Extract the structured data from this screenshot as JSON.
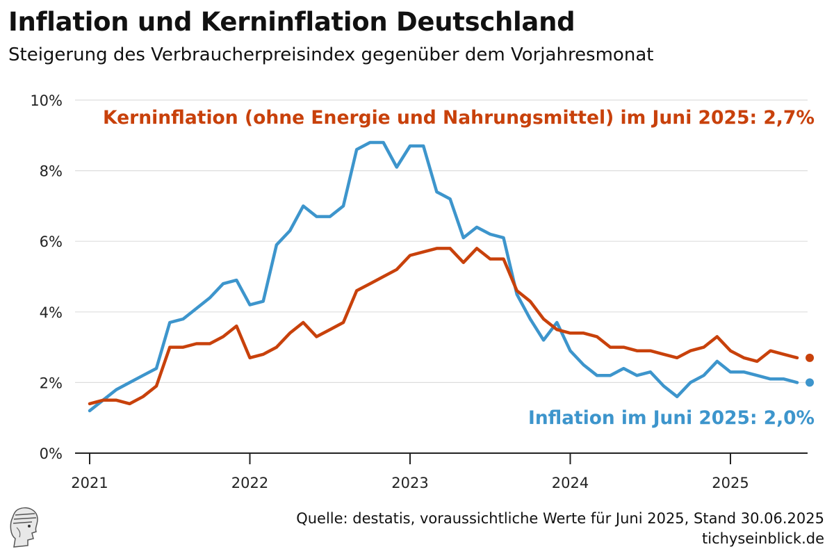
{
  "header": {
    "title": "Inflation und Kerninflation Deutschland",
    "subtitle": "Steigerung des Verbraucherpreisindex gegenüber dem Vorjahresmonat"
  },
  "footer": {
    "source": "Quelle: destatis, voraussichtliche Werte für Juni 2025, Stand 30.06.2025",
    "site": "tichyseinblick.de"
  },
  "colors": {
    "inflation": "#3d95cc",
    "core": "#c8410b",
    "grid": "#dddddd",
    "axis": "#222222"
  },
  "chart_data": {
    "type": "line",
    "x_start": "2021-01",
    "x_end": "2025-06",
    "x_ticks": [
      "2021",
      "2022",
      "2023",
      "2024",
      "2025"
    ],
    "y_ticks": [
      "0%",
      "2%",
      "4%",
      "6%",
      "8%",
      "10%"
    ],
    "ylim": [
      0,
      10
    ],
    "grid": true,
    "annotations": {
      "core": "Kerninflation (ohne Energie und Nahrungsmittel) im Juni 2025: 2,7%",
      "inflation": "Inflation im Juni 2025: 2,0%"
    },
    "series": [
      {
        "key": "inflation",
        "values": [
          1.2,
          1.5,
          1.8,
          2.0,
          2.2,
          2.4,
          3.7,
          3.8,
          4.1,
          4.4,
          4.8,
          4.9,
          4.2,
          4.3,
          5.9,
          6.3,
          7.0,
          6.7,
          6.7,
          7.0,
          8.6,
          8.8,
          8.8,
          8.1,
          8.7,
          8.7,
          7.4,
          7.2,
          6.1,
          6.4,
          6.2,
          6.1,
          4.5,
          3.8,
          3.2,
          3.7,
          2.9,
          2.5,
          2.2,
          2.2,
          2.4,
          2.2,
          2.3,
          1.9,
          1.6,
          2.0,
          2.2,
          2.6,
          2.3,
          2.3,
          2.2,
          2.1,
          2.1,
          2.0
        ]
      },
      {
        "key": "core",
        "values": [
          1.4,
          1.5,
          1.5,
          1.4,
          1.6,
          1.9,
          3.0,
          3.0,
          3.1,
          3.1,
          3.3,
          3.6,
          2.7,
          2.8,
          3.0,
          3.4,
          3.7,
          3.3,
          3.5,
          3.7,
          4.6,
          4.8,
          5.0,
          5.2,
          5.6,
          5.7,
          5.8,
          5.8,
          5.4,
          5.8,
          5.5,
          5.5,
          4.6,
          4.3,
          3.8,
          3.5,
          3.4,
          3.4,
          3.3,
          3.0,
          3.0,
          2.9,
          2.9,
          2.8,
          2.7,
          2.9,
          3.0,
          3.3,
          2.9,
          2.7,
          2.6,
          2.9,
          2.8,
          2.7
        ]
      }
    ]
  }
}
